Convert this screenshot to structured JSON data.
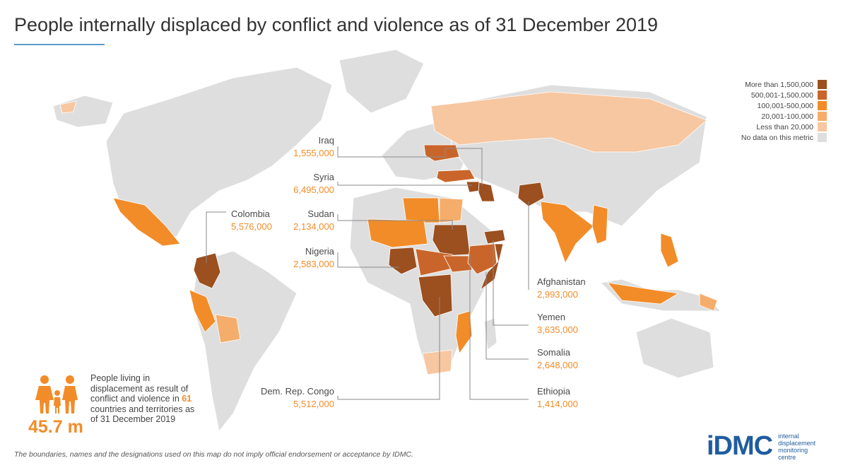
{
  "title": "People internally displaced by conflict and violence as of 31 December 2019",
  "legend": {
    "items": [
      {
        "label": "More than 1,500,000",
        "color": "#9c4f1f"
      },
      {
        "label": "500,001-1,500,000",
        "color": "#c9652a"
      },
      {
        "label": "100,001-500,000",
        "color": "#f28c28"
      },
      {
        "label": "20,001-100,000",
        "color": "#f5ad6b"
      },
      {
        "label": "Less than 20,000",
        "color": "#f7c7a1"
      },
      {
        "label": "No data on this metric",
        "color": "#dedede"
      }
    ]
  },
  "callouts": [
    {
      "name": "Iraq",
      "value": "1,555,000"
    },
    {
      "name": "Syria",
      "value": "6,495,000"
    },
    {
      "name": "Sudan",
      "value": "2,134,000"
    },
    {
      "name": "Nigeria",
      "value": "2,583,000"
    },
    {
      "name": "Colombia",
      "value": "5,576,000"
    },
    {
      "name": "Afghanistan",
      "value": "2,993,000"
    },
    {
      "name": "Yemen",
      "value": "3,635,000"
    },
    {
      "name": "Somalia",
      "value": "2,648,000"
    },
    {
      "name": "Dem. Rep. Congo",
      "value": "5,512,000"
    },
    {
      "name": "Ethiopia",
      "value": "1,414,000"
    }
  ],
  "summary": {
    "number": "45.7 m",
    "text_before": "People living in displacement as result of conflict and violence in ",
    "count": "61",
    "text_after": " countries and territories as of 31 December 2019"
  },
  "footnote": "The boundaries, names and the designations used on this map do not imply official endorsement or acceptance by IDMC.",
  "logo": {
    "mark": "iDMC",
    "line1": "internal",
    "line2": "displacement",
    "line3": "monitoring",
    "line4": "centre"
  }
}
